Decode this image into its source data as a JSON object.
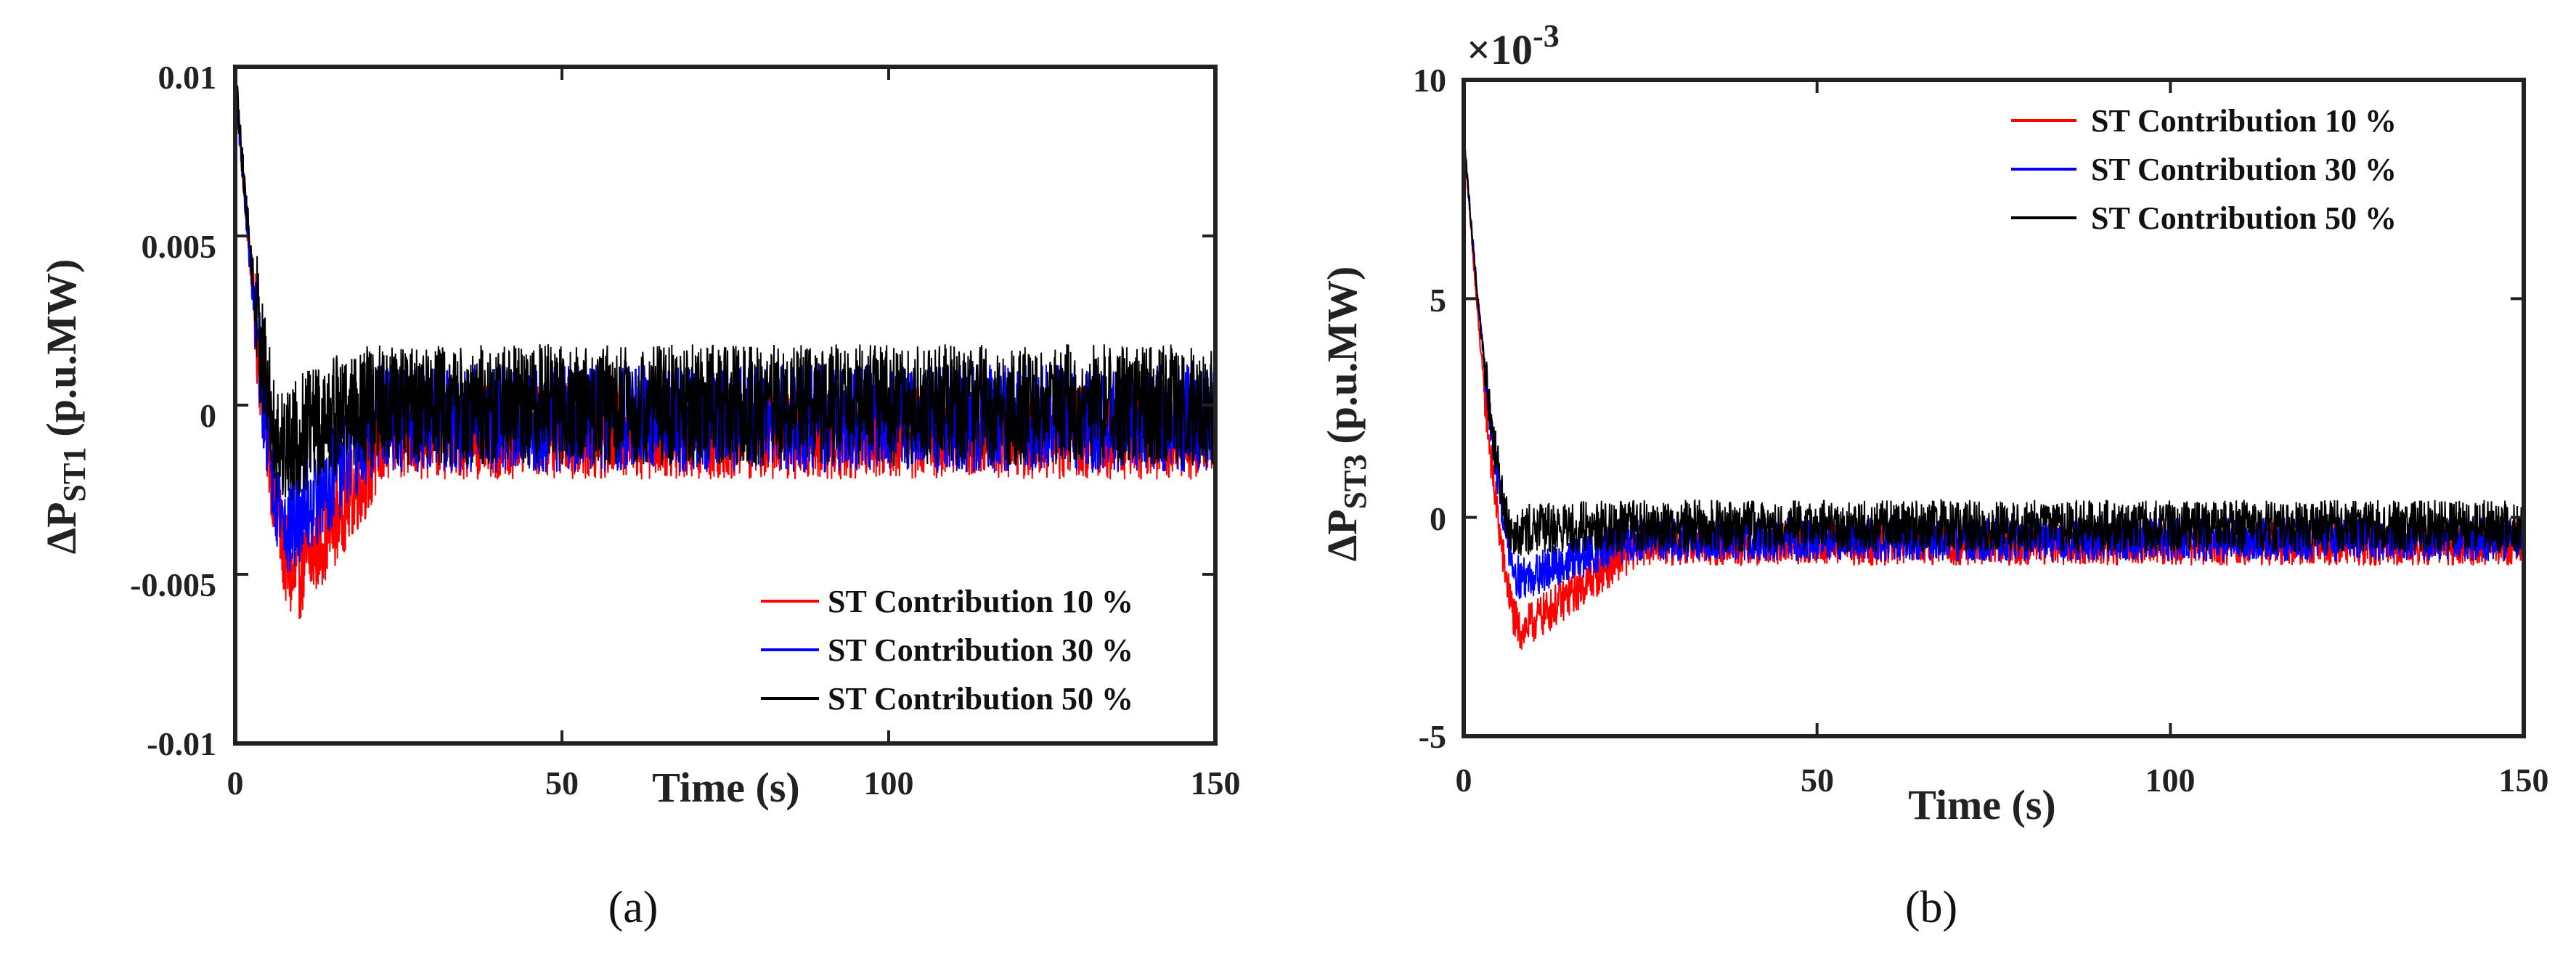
{
  "chart_data": [
    {
      "type": "line",
      "panel_label": "(a)",
      "xlabel": "Time (s)",
      "ylabel_main": "ΔP",
      "ylabel_sub": "ST1",
      "ylabel_unit": "(p.u.MW)",
      "xlim": [
        0,
        150
      ],
      "ylim": [
        -0.01,
        0.01
      ],
      "x_ticks": [
        0,
        50,
        100,
        150
      ],
      "x_tick_labels": [
        "0",
        "50",
        "100",
        "150"
      ],
      "y_ticks": [
        0.01,
        0.005,
        0,
        -0.005,
        -0.01
      ],
      "y_tick_labels": [
        "0.01",
        "0.005",
        "0",
        "-0.005",
        "-0.01"
      ],
      "exponent_label": "",
      "legend_position": "bottom-right",
      "colors": {
        "10": "#ff0000",
        "30": "#0000ff",
        "50": "#000000"
      },
      "series": [
        {
          "name": "ST Contribution 10 %",
          "color": "#ff0000",
          "start": 0.0098,
          "trough_time": 9,
          "trough": -0.0052,
          "recovery_time": 24,
          "mean_after": -0.0008,
          "noise": 0.0014
        },
        {
          "name": "ST Contribution 30 %",
          "color": "#0000ff",
          "start": 0.0098,
          "trough_time": 8,
          "trough": -0.0036,
          "recovery_time": 22,
          "mean_after": -0.0004,
          "noise": 0.0016
        },
        {
          "name": "ST Contribution 50 %",
          "color": "#000000",
          "start": 0.0098,
          "trough_time": 7,
          "trough": -0.0012,
          "recovery_time": 18,
          "mean_after": 0.0,
          "noise": 0.0018
        }
      ]
    },
    {
      "type": "line",
      "panel_label": "(b)",
      "xlabel": "Time (s)",
      "ylabel_main": "ΔP",
      "ylabel_sub": "ST3",
      "ylabel_unit": "(p.u.MW)",
      "xlim": [
        0,
        150
      ],
      "ylim": [
        -5,
        10
      ],
      "x_ticks": [
        0,
        50,
        100,
        150
      ],
      "x_tick_labels": [
        "0",
        "50",
        "100",
        "150"
      ],
      "y_ticks": [
        10,
        5,
        0,
        -5
      ],
      "y_tick_labels": [
        "10",
        "5",
        "0",
        "-5"
      ],
      "exponent_label": "×10",
      "exponent_power": "-3",
      "legend_position": "top-right",
      "colors": {
        "10": "#ff0000",
        "30": "#0000ff",
        "50": "#000000"
      },
      "series": [
        {
          "name": "ST Contribution 10 %",
          "color": "#ff0000",
          "start": 8.8,
          "trough_time": 8,
          "trough": -2.6,
          "recovery_time": 25,
          "mean_after": -0.6,
          "noise": 0.5
        },
        {
          "name": "ST Contribution 30 %",
          "color": "#0000ff",
          "start": 8.8,
          "trough_time": 8,
          "trough": -1.4,
          "recovery_time": 24,
          "mean_after": -0.5,
          "noise": 0.5
        },
        {
          "name": "ST Contribution 50 %",
          "color": "#000000",
          "start": 8.8,
          "trough_time": 7,
          "trough": -0.3,
          "recovery_time": 20,
          "mean_after": -0.2,
          "noise": 0.6
        }
      ]
    }
  ]
}
